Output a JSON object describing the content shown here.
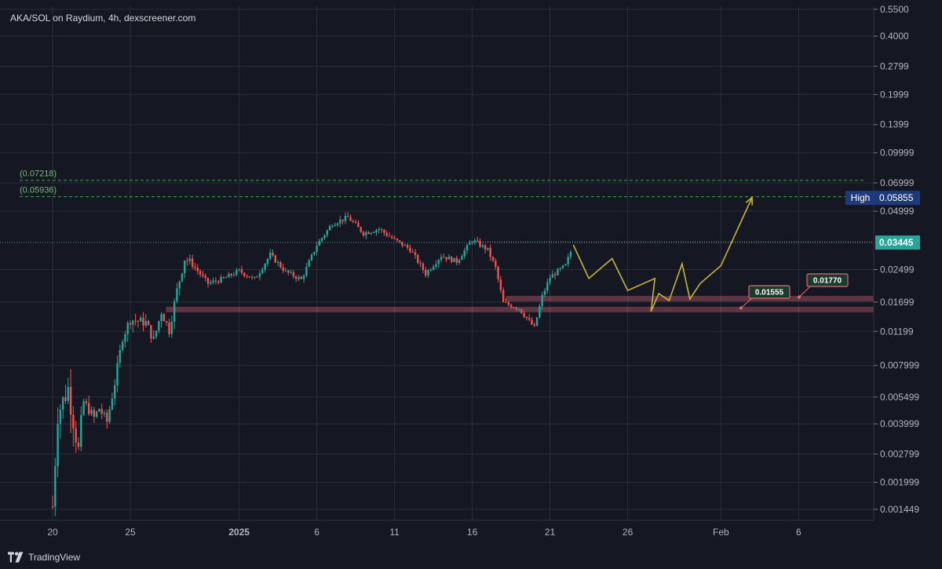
{
  "header": {
    "title": "AKA/SOL on Raydium, 4h, dexscreener.com"
  },
  "footer": {
    "brand": "TradingView"
  },
  "colors": {
    "background": "#151823",
    "up": "#26a69a",
    "down": "#ef5350",
    "projection": "#c9b43b",
    "level_line": "#3fa34d",
    "grid": "#2a2e39"
  },
  "chart_data": {
    "type": "candlestick",
    "symbol": "AKA/SOL",
    "interval": "4h",
    "y_scale": "log",
    "y_ticks": [
      "0.5500",
      "0.4000",
      "0.2799",
      "0.1999",
      "0.1399",
      "0.09999",
      "0.06999",
      "0.04999",
      "0.02499",
      "0.01699",
      "0.01199",
      "0.007999",
      "0.005499",
      "0.003999",
      "0.002799",
      "0.001999",
      "0.001449"
    ],
    "x_ticks": [
      "20",
      "25",
      "2025",
      "6",
      "11",
      "16",
      "21",
      "26",
      "Feb",
      "6"
    ],
    "price_labels": [
      {
        "label": "High",
        "value": "0.05855",
        "bg": "#1e3a7b"
      },
      {
        "label": "",
        "value": "0.03445",
        "bg": "#26a69a"
      }
    ],
    "level_lines": [
      {
        "label": "(0.07218)",
        "value": 0.07218
      },
      {
        "label": "(0.05936)",
        "value": 0.05936
      }
    ],
    "support_zones": [
      {
        "value": "0.01770"
      },
      {
        "value": "0.01555"
      }
    ],
    "price_path": [
      [
        "2024-12-20",
        0.0015
      ],
      [
        "2024-12-20T08",
        0.0045
      ],
      [
        "2024-12-21",
        0.0061
      ],
      [
        "2024-12-21T16",
        0.0029
      ],
      [
        "2024-12-22",
        0.0052
      ],
      [
        "2024-12-22T16",
        0.0043
      ],
      [
        "2024-12-23",
        0.0048
      ],
      [
        "2024-12-23T12",
        0.0041
      ],
      [
        "2024-12-24",
        0.0065
      ],
      [
        "2024-12-24T12",
        0.0112
      ],
      [
        "2024-12-25",
        0.0138
      ],
      [
        "2024-12-26",
        0.0133
      ],
      [
        "2024-12-26T12",
        0.0108
      ],
      [
        "2024-12-27",
        0.0152
      ],
      [
        "2024-12-27T12",
        0.0122
      ],
      [
        "2024-12-28",
        0.0195
      ],
      [
        "2024-12-28T12",
        0.0285
      ],
      [
        "2024-12-29",
        0.0265
      ],
      [
        "2024-12-30",
        0.0212
      ],
      [
        "2024-12-31",
        0.0224
      ],
      [
        "2025-01-01",
        0.0246
      ],
      [
        "2025-01-02",
        0.0222
      ],
      [
        "2025-01-03",
        0.0298
      ],
      [
        "2025-01-04",
        0.0243
      ],
      [
        "2025-01-05",
        0.0222
      ],
      [
        "2025-01-06",
        0.0335
      ],
      [
        "2025-01-07",
        0.0432
      ],
      [
        "2025-01-08",
        0.0465
      ],
      [
        "2025-01-09",
        0.0385
      ],
      [
        "2025-01-10",
        0.0405
      ],
      [
        "2025-01-11",
        0.0355
      ],
      [
        "2025-01-12",
        0.0318
      ],
      [
        "2025-01-13",
        0.0238
      ],
      [
        "2025-01-14",
        0.0295
      ],
      [
        "2025-01-15",
        0.0275
      ],
      [
        "2025-01-16",
        0.0355
      ],
      [
        "2025-01-17",
        0.0315
      ],
      [
        "2025-01-17T12",
        0.0255
      ],
      [
        "2025-01-18",
        0.0168
      ],
      [
        "2025-01-19",
        0.0158
      ],
      [
        "2025-01-20",
        0.0125
      ],
      [
        "2025-01-20T12",
        0.0182
      ],
      [
        "2025-01-21",
        0.0228
      ],
      [
        "2025-01-22",
        0.0262
      ],
      [
        "2025-01-22T12",
        0.0335
      ]
    ],
    "projection_path": [
      [
        "2025-01-22T12",
        0.0335
      ],
      [
        "2025-01-23T12",
        0.0225
      ],
      [
        "2025-01-25",
        0.0285
      ],
      [
        "2025-01-26",
        0.0195
      ],
      [
        "2025-01-27T18",
        0.0225
      ],
      [
        "2025-01-27T12",
        0.0152
      ],
      [
        "2025-01-28",
        0.0188
      ],
      [
        "2025-01-28T16",
        0.0173
      ],
      [
        "2025-01-29T12",
        0.0268
      ],
      [
        "2025-01-30",
        0.0176
      ],
      [
        "2025-01-30T16",
        0.0212
      ],
      [
        "2025-02-01",
        0.0262
      ],
      [
        "2025-02-03",
        0.0588
      ]
    ]
  }
}
